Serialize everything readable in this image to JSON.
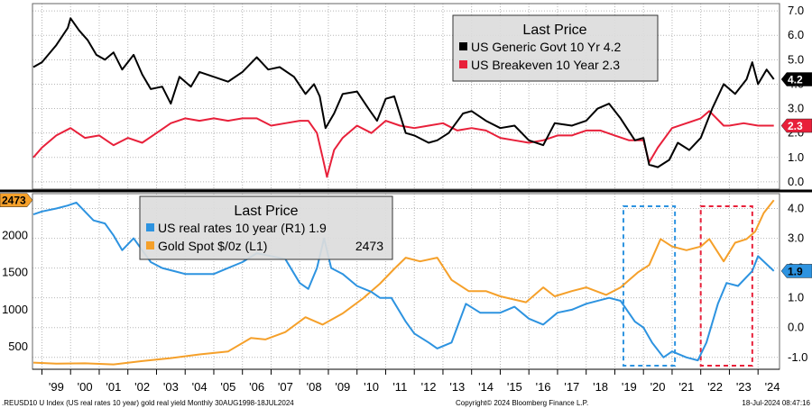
{
  "chart_data": [
    {
      "type": "line",
      "panel": "top",
      "legend_title": "Last Price",
      "y_right_ticks": [
        "7.0",
        "6.0",
        "5.0",
        "4.0",
        "3.0",
        "2.0",
        "1.0",
        "0.0"
      ],
      "ylim": [
        -0.3,
        7.3
      ],
      "series": [
        {
          "name": "US Generic Govt 10 Yr",
          "legend_label": "US Generic Govt 10 Yr 4.2",
          "last_value": "4.2",
          "color": "#000000",
          "x": [
            1998.7,
            1999.0,
            1999.5,
            1999.9,
            2000.0,
            2000.3,
            2000.6,
            2000.9,
            2001.2,
            2001.5,
            2001.8,
            2002.2,
            2002.5,
            2002.8,
            2003.2,
            2003.5,
            2003.8,
            2004.2,
            2004.5,
            2005.0,
            2005.5,
            2006.0,
            2006.5,
            2006.9,
            2007.3,
            2007.8,
            2008.2,
            2008.5,
            2008.7,
            2008.9,
            2009.2,
            2009.5,
            2010.0,
            2010.4,
            2010.7,
            2011.0,
            2011.3,
            2011.7,
            2012.0,
            2012.5,
            2012.8,
            2013.2,
            2013.7,
            2014.0,
            2014.5,
            2015.0,
            2015.5,
            2016.0,
            2016.5,
            2016.9,
            2017.5,
            2018.0,
            2018.4,
            2018.8,
            2019.2,
            2019.7,
            2020.0,
            2020.2,
            2020.5,
            2020.9,
            2021.2,
            2021.6,
            2022.0,
            2022.4,
            2022.8,
            2023.2,
            2023.6,
            2023.8,
            2024.0,
            2024.3,
            2024.55
          ],
          "values": [
            4.7,
            4.9,
            5.6,
            6.3,
            6.7,
            6.2,
            5.8,
            5.2,
            5.0,
            5.3,
            4.6,
            5.2,
            4.4,
            3.8,
            3.9,
            3.2,
            4.3,
            3.9,
            4.5,
            4.3,
            4.1,
            4.5,
            5.1,
            4.6,
            4.7,
            4.3,
            3.6,
            4.0,
            3.5,
            2.2,
            2.8,
            3.6,
            3.7,
            3.0,
            2.5,
            3.4,
            3.5,
            2.0,
            1.9,
            1.6,
            1.7,
            2.0,
            2.8,
            2.9,
            2.5,
            2.2,
            2.3,
            1.7,
            1.5,
            2.4,
            2.3,
            2.5,
            3.0,
            3.2,
            2.6,
            1.7,
            1.8,
            0.7,
            0.6,
            0.9,
            1.6,
            1.3,
            1.8,
            3.0,
            4.0,
            3.6,
            4.2,
            4.9,
            4.0,
            4.6,
            4.2
          ]
        },
        {
          "name": "US Breakeven 10 Year",
          "legend_label": "US Breakeven 10 Year 2.3",
          "last_value": "2.3",
          "color": "#e8203a",
          "x": [
            1998.7,
            1999.0,
            1999.5,
            2000.0,
            2000.5,
            2001.0,
            2001.5,
            2002.0,
            2002.5,
            2003.0,
            2003.5,
            2004.0,
            2004.5,
            2005.0,
            2005.5,
            2006.0,
            2006.5,
            2007.0,
            2007.5,
            2008.0,
            2008.3,
            2008.6,
            2008.8,
            2008.95,
            2009.2,
            2009.5,
            2010.0,
            2010.5,
            2011.0,
            2011.5,
            2012.0,
            2012.5,
            2013.0,
            2013.5,
            2014.0,
            2014.5,
            2015.0,
            2015.5,
            2016.0,
            2016.5,
            2017.0,
            2017.5,
            2018.0,
            2018.5,
            2019.0,
            2019.5,
            2020.0,
            2020.2,
            2020.5,
            2021.0,
            2021.5,
            2022.0,
            2022.3,
            2022.8,
            2023.0,
            2023.5,
            2024.0,
            2024.55
          ],
          "values": [
            1.0,
            1.4,
            1.9,
            2.2,
            1.8,
            1.9,
            1.5,
            1.8,
            1.6,
            2.0,
            2.4,
            2.6,
            2.5,
            2.6,
            2.5,
            2.6,
            2.6,
            2.3,
            2.4,
            2.5,
            2.5,
            2.0,
            1.0,
            0.2,
            1.3,
            1.8,
            2.3,
            2.0,
            2.5,
            2.3,
            2.2,
            2.3,
            2.4,
            2.1,
            2.2,
            2.1,
            1.8,
            1.7,
            1.6,
            1.7,
            1.9,
            1.9,
            2.1,
            2.1,
            1.9,
            1.7,
            1.7,
            0.8,
            1.4,
            2.2,
            2.4,
            2.6,
            2.9,
            2.3,
            2.3,
            2.4,
            2.3,
            2.3
          ]
        }
      ]
    },
    {
      "type": "line",
      "panel": "bottom",
      "legend_title": "Last Price",
      "y_left_ticks": [
        "2000",
        "1500",
        "1000",
        "500"
      ],
      "y_right_ticks": [
        "4.0",
        "3.0",
        "2.0",
        "1.0",
        "0.0",
        "-1.0"
      ],
      "ylim_left": [
        200,
        2560
      ],
      "ylim_right": [
        -1.4,
        4.5
      ],
      "series": [
        {
          "name": "US real rates 10 year",
          "legend_label": "US real rates 10 year  (R1) 1.9",
          "axis": "right",
          "last_value": "1.9",
          "color": "#2d93e0",
          "x": [
            1998.7,
            1999.0,
            1999.5,
            1999.9,
            2000.2,
            2000.5,
            2000.8,
            2001.2,
            2001.5,
            2001.8,
            2002.2,
            2002.5,
            2002.8,
            2003.2,
            2003.6,
            2004.0,
            2004.5,
            2005.0,
            2005.5,
            2006.0,
            2006.5,
            2007.0,
            2007.5,
            2008.0,
            2008.3,
            2008.6,
            2008.85,
            2009.1,
            2009.5,
            2010.0,
            2010.5,
            2010.8,
            2011.2,
            2011.7,
            2012.0,
            2012.5,
            2012.8,
            2013.3,
            2013.8,
            2014.3,
            2015.0,
            2015.5,
            2016.0,
            2016.5,
            2017.0,
            2017.5,
            2018.0,
            2018.8,
            2019.2,
            2019.7,
            2020.0,
            2020.3,
            2020.7,
            2021.0,
            2021.5,
            2021.9,
            2022.2,
            2022.6,
            2022.9,
            2023.3,
            2023.8,
            2024.0,
            2024.55
          ],
          "values": [
            3.8,
            3.9,
            4.0,
            4.1,
            4.2,
            3.9,
            3.6,
            3.5,
            3.1,
            2.6,
            3.0,
            2.6,
            2.2,
            2.0,
            1.9,
            1.8,
            1.8,
            1.8,
            2.0,
            2.2,
            2.5,
            2.4,
            2.3,
            1.5,
            1.3,
            2.0,
            3.0,
            2.0,
            1.8,
            1.4,
            1.2,
            1.0,
            1.0,
            0.2,
            -0.2,
            -0.5,
            -0.7,
            -0.5,
            0.8,
            0.5,
            0.5,
            0.7,
            0.3,
            0.1,
            0.5,
            0.6,
            0.8,
            1.0,
            0.9,
            0.2,
            0.0,
            -0.5,
            -1.0,
            -0.8,
            -1.0,
            -1.1,
            -0.5,
            0.8,
            1.5,
            1.4,
            1.9,
            2.4,
            1.9
          ]
        },
        {
          "name": "Gold Spot $/Oz",
          "legend_label": "Gold Spot $/0z  (L1)",
          "legend_value": "2473",
          "axis": "left",
          "last_value": "2473",
          "color": "#f5a02a",
          "x": [
            1998.7,
            1999.5,
            2000.5,
            2001.5,
            2002.5,
            2003.5,
            2004.5,
            2005.5,
            2006.3,
            2006.8,
            2007.5,
            2008.2,
            2008.8,
            2009.5,
            2010.2,
            2010.8,
            2011.3,
            2011.7,
            2012.2,
            2012.8,
            2013.3,
            2013.9,
            2014.5,
            2015.0,
            2015.9,
            2016.5,
            2016.9,
            2017.5,
            2018.0,
            2018.7,
            2019.2,
            2019.8,
            2020.2,
            2020.6,
            2021.0,
            2021.5,
            2022.0,
            2022.3,
            2022.8,
            2023.2,
            2023.6,
            2023.9,
            2024.2,
            2024.55
          ],
          "values": [
            290,
            275,
            280,
            265,
            310,
            350,
            400,
            440,
            620,
            600,
            700,
            900,
            800,
            950,
            1150,
            1350,
            1550,
            1700,
            1650,
            1700,
            1400,
            1250,
            1250,
            1180,
            1100,
            1300,
            1180,
            1250,
            1300,
            1200,
            1300,
            1500,
            1600,
            1950,
            1850,
            1800,
            1850,
            1950,
            1650,
            1900,
            1950,
            2050,
            2300,
            2473
          ]
        }
      ]
    }
  ],
  "x_axis": {
    "labels": [
      "'99",
      "'00",
      "'01",
      "'02",
      "'03",
      "'04",
      "'05",
      "'06",
      "'07",
      "'08",
      "'09",
      "'10",
      "'11",
      "'12",
      "'13",
      "'14",
      "'15",
      "'16",
      "'17",
      "'18",
      "'19",
      "'20",
      "'21",
      "'22",
      "'23",
      "'24"
    ]
  },
  "highlights": [
    {
      "name": "blue-highlight-box",
      "x_range": [
        2019.3,
        2021.1
      ],
      "color": "#2d93e0"
    },
    {
      "name": "red-highlight-box",
      "x_range": [
        2022.0,
        2023.8
      ],
      "color": "#e8203a"
    }
  ],
  "footer": {
    "left": ".REUSD10 U Index (US real rates 10 year) gold real yield  Monthly 30AUG1998-18JUL2024",
    "center": "Copyright© 2024 Bloomberg Finance L.P.",
    "right": "18-Jul-2024 08:47:16"
  }
}
